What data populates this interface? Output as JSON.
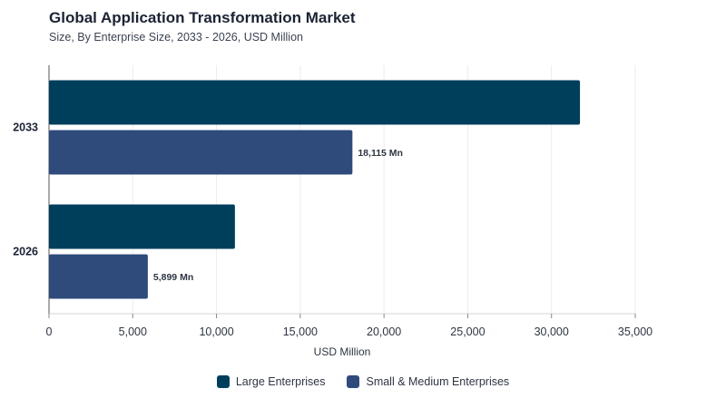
{
  "chart_data": {
    "type": "bar",
    "orientation": "horizontal",
    "title": "Global Application Transformation Market",
    "subtitle": "Size, By Enterprise Size, 2033 - 2026, USD Million",
    "xlabel": "USD Million",
    "ylabel": "",
    "xlim": [
      0,
      35000
    ],
    "xticks": [
      0,
      5000,
      10000,
      15000,
      20000,
      25000,
      30000,
      35000
    ],
    "xtick_labels": [
      "0",
      "5,000",
      "10,000",
      "15,000",
      "20,000",
      "25,000",
      "30,000",
      "35,000"
    ],
    "categories": [
      "2033",
      "2026"
    ],
    "series": [
      {
        "name": "Large Enterprises",
        "color": "#003f5c",
        "values": [
          31700,
          11100
        ],
        "labels": [
          "",
          ""
        ]
      },
      {
        "name": "Small & Medium Enterprises",
        "color": "#2f4b7c",
        "values": [
          18115,
          5899
        ],
        "labels": [
          "18,115 Mn",
          "5,899 Mn"
        ]
      }
    ],
    "grid": true,
    "legend_position": "bottom-center"
  }
}
